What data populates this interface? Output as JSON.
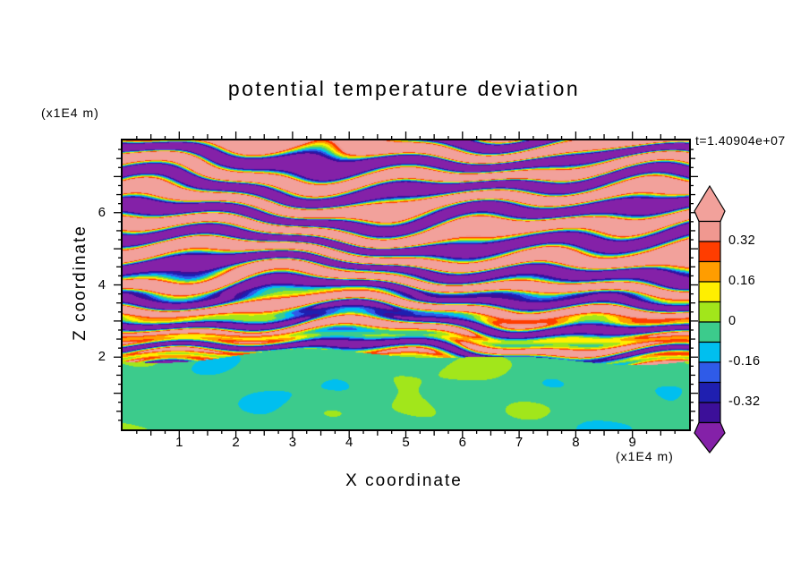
{
  "title": "potential temperature deviation",
  "time_label": "t=1.40904e+07",
  "x_axis_label": "X coordinate",
  "y_axis_label": "Z coordinate",
  "x_axis_unit": "(x1E4 m)",
  "y_axis_unit": "(x1E4 m)",
  "colorbar": {
    "labels": [
      "0.32",
      "0.16",
      "0",
      "-0.16",
      "-0.32"
    ]
  },
  "chart_data": {
    "type": "heatmap",
    "title": "potential temperature deviation",
    "xlabel": "X coordinate",
    "ylabel": "Z coordinate",
    "x_unit_note": "(x1E4 m)",
    "y_unit_note": "(x1E4 m)",
    "time_annotation": "t=1.40904e+07",
    "xlim": [
      0,
      10
    ],
    "ylim": [
      0,
      8
    ],
    "x_ticks": [
      "1",
      "2",
      "3",
      "4",
      "5",
      "6",
      "7",
      "8",
      "9"
    ],
    "y_ticks": [
      "2",
      "4",
      "6"
    ],
    "grid": false,
    "legend_position": "right",
    "colorbar_tick_labels": [
      "0.32",
      "0.16",
      "0",
      "-0.16",
      "-0.32"
    ],
    "contour_levels_desc": [
      0.4,
      0.32,
      0.24,
      0.16,
      0.08,
      0,
      -0.08,
      -0.16,
      -0.24,
      -0.32,
      -0.4
    ],
    "band_colors_high_to_low": [
      "#F2A19B",
      "#F09890",
      "#FF3D00",
      "#FF9D00",
      "#FFEF00",
      "#A2E61B",
      "#3CCB8C",
      "#00BFEF",
      "#2F5BE8",
      "#1F1FB0",
      "#3C0F99",
      "#8421A8"
    ],
    "field_description": {
      "upper_region": "2 < z < 8 (x1E4 m): stratified wavy horizontal layers alternating strong positive (pink, > +0.4) and strong negative (purple, < -0.4) deviations, separated by thin red/orange/yellow/lime/cyan/blue transition stripes; layers grow thinner and more broken toward z = 2",
      "lower_region": "0 < z < 2 (x1E4 m): near-zero deviations; spring-green background (-0.08 to 0) with lime-green patches (0 to +0.08)"
    }
  }
}
